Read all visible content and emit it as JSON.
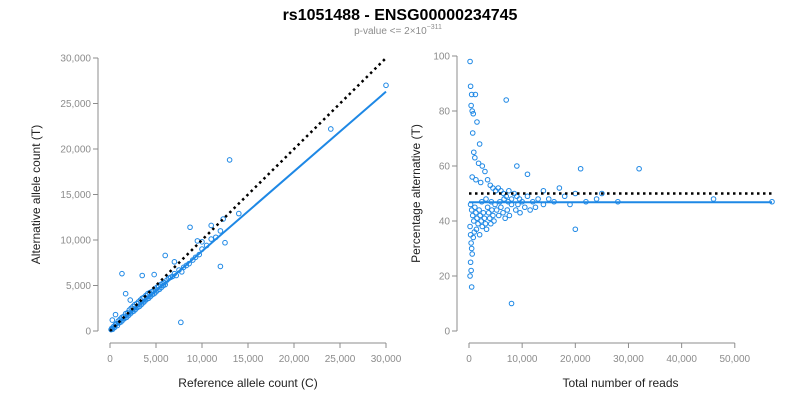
{
  "title": "rs1051488 - ENSG00000234745",
  "subtitle": {
    "prefix": "p-value <= 2",
    "times": "×",
    "base": "10",
    "exponent": "−311"
  },
  "colors": {
    "points": "#1e88e5",
    "fit": "#1e88e5",
    "reference": "#000000",
    "axis": "#8c8c8c"
  },
  "chart_data": [
    {
      "type": "scatter",
      "xlabel": "Reference allele count (C)",
      "ylabel": "Alternative allele count (T)",
      "xlim": [
        0,
        30000
      ],
      "ylim": [
        0,
        30000
      ],
      "xticks": [
        0,
        5000,
        10000,
        15000,
        20000,
        25000,
        30000
      ],
      "xtick_labels": [
        "0",
        "5,000",
        "10,000",
        "15,000",
        "20,000",
        "25,000",
        "30,000"
      ],
      "yticks": [
        0,
        5000,
        10000,
        15000,
        20000,
        25000,
        30000
      ],
      "ytick_labels": [
        "0",
        "5,000",
        "10,000",
        "15,000",
        "20,000",
        "25,000",
        "30,000"
      ],
      "grid": false,
      "reference_line": {
        "style": "dotted",
        "points": [
          [
            0,
            0
          ],
          [
            30000,
            30000
          ]
        ]
      },
      "fit_line": {
        "style": "solid",
        "points": [
          [
            0,
            0
          ],
          [
            30000,
            26300
          ]
        ]
      },
      "points": [
        [
          120,
          150
        ],
        [
          200,
          300
        ],
        [
          300,
          200
        ],
        [
          400,
          500
        ],
        [
          500,
          400
        ],
        [
          600,
          700
        ],
        [
          700,
          800
        ],
        [
          800,
          600
        ],
        [
          900,
          1100
        ],
        [
          1000,
          900
        ],
        [
          1100,
          1300
        ],
        [
          1200,
          1000
        ],
        [
          1300,
          1500
        ],
        [
          1400,
          1200
        ],
        [
          1500,
          1600
        ],
        [
          1600,
          1400
        ],
        [
          1700,
          1900
        ],
        [
          1800,
          1500
        ],
        [
          1900,
          2000
        ],
        [
          2000,
          1700
        ],
        [
          2100,
          2300
        ],
        [
          2200,
          1900
        ],
        [
          2300,
          2500
        ],
        [
          2400,
          2100
        ],
        [
          2500,
          2700
        ],
        [
          2600,
          2200
        ],
        [
          2700,
          2900
        ],
        [
          2800,
          2400
        ],
        [
          2900,
          3000
        ],
        [
          3000,
          2600
        ],
        [
          3100,
          3200
        ],
        [
          3200,
          2700
        ],
        [
          3300,
          3400
        ],
        [
          3400,
          2900
        ],
        [
          3500,
          3600
        ],
        [
          3600,
          3100
        ],
        [
          3700,
          3700
        ],
        [
          3800,
          3300
        ],
        [
          3900,
          3900
        ],
        [
          4000,
          3500
        ],
        [
          4100,
          4100
        ],
        [
          4200,
          3600
        ],
        [
          4300,
          4200
        ],
        [
          4400,
          3800
        ],
        [
          4500,
          4300
        ],
        [
          4600,
          4000
        ],
        [
          4700,
          4400
        ],
        [
          4800,
          4100
        ],
        [
          4900,
          4600
        ],
        [
          5000,
          4300
        ],
        [
          5100,
          4800
        ],
        [
          5200,
          4500
        ],
        [
          5300,
          4900
        ],
        [
          5400,
          4600
        ],
        [
          5500,
          5100
        ],
        [
          5600,
          4800
        ],
        [
          5700,
          5200
        ],
        [
          5800,
          5000
        ],
        [
          5900,
          5300
        ],
        [
          6000,
          5100
        ],
        [
          6200,
          5600
        ],
        [
          6400,
          5800
        ],
        [
          6600,
          5900
        ],
        [
          6800,
          6000
        ],
        [
          7000,
          6300
        ],
        [
          7200,
          6100
        ],
        [
          7500,
          6700
        ],
        [
          7800,
          6500
        ],
        [
          8000,
          7000
        ],
        [
          8300,
          7200
        ],
        [
          8600,
          7400
        ],
        [
          9000,
          7800
        ],
        [
          9300,
          8100
        ],
        [
          9700,
          8400
        ],
        [
          10000,
          9000
        ],
        [
          10500,
          9400
        ],
        [
          11000,
          10100
        ],
        [
          11500,
          10300
        ],
        [
          12000,
          11000
        ],
        [
          12300,
          12300
        ],
        [
          12500,
          9700
        ],
        [
          13000,
          18800
        ],
        [
          14000,
          12900
        ],
        [
          12000,
          7100
        ],
        [
          11000,
          11600
        ],
        [
          10000,
          9800
        ],
        [
          7700,
          950
        ],
        [
          1300,
          6300
        ],
        [
          1700,
          4100
        ],
        [
          3500,
          6100
        ],
        [
          6000,
          8300
        ],
        [
          7000,
          7600
        ],
        [
          8700,
          11400
        ],
        [
          9500,
          9900
        ],
        [
          24000,
          22200
        ],
        [
          30000,
          27000
        ],
        [
          250,
          1200
        ],
        [
          600,
          1800
        ],
        [
          2200,
          3400
        ],
        [
          4800,
          6200
        ]
      ]
    },
    {
      "type": "scatter",
      "xlabel": "Total number of reads",
      "ylabel": "Percentage alternative (T)",
      "xlim": [
        0,
        57000
      ],
      "ylim": [
        0,
        100
      ],
      "xticks": [
        0,
        10000,
        20000,
        30000,
        40000,
        50000
      ],
      "xtick_labels": [
        "0",
        "10,000",
        "20,000",
        "30,000",
        "40,000",
        "50,000"
      ],
      "yticks": [
        0,
        20,
        40,
        60,
        80,
        100
      ],
      "ytick_labels": [
        "0",
        "20",
        "40",
        "60",
        "80",
        "100"
      ],
      "grid": false,
      "reference_line": {
        "style": "dotted",
        "points": [
          [
            0,
            50
          ],
          [
            57000,
            50
          ]
        ]
      },
      "fit_line": {
        "style": "solid",
        "points": [
          [
            0,
            46.8
          ],
          [
            57000,
            46.8
          ]
        ]
      },
      "points": [
        [
          200,
          98
        ],
        [
          300,
          89
        ],
        [
          500,
          86
        ],
        [
          400,
          82
        ],
        [
          600,
          80
        ],
        [
          800,
          79
        ],
        [
          1200,
          86
        ],
        [
          700,
          72
        ],
        [
          1500,
          76
        ],
        [
          2000,
          68
        ],
        [
          900,
          65
        ],
        [
          1100,
          63
        ],
        [
          1800,
          61
        ],
        [
          2500,
          60
        ],
        [
          3000,
          58
        ],
        [
          600,
          56
        ],
        [
          1300,
          55
        ],
        [
          2200,
          54
        ],
        [
          3500,
          55
        ],
        [
          4000,
          53
        ],
        [
          4500,
          52
        ],
        [
          5000,
          51
        ],
        [
          5500,
          52
        ],
        [
          6000,
          51
        ],
        [
          6500,
          50
        ],
        [
          7000,
          49
        ],
        [
          7500,
          51
        ],
        [
          8000,
          48
        ],
        [
          8500,
          50
        ],
        [
          9000,
          49
        ],
        [
          9500,
          48
        ],
        [
          10000,
          47
        ],
        [
          11000,
          49
        ],
        [
          12000,
          47
        ],
        [
          13000,
          48
        ],
        [
          14000,
          46
        ],
        [
          15000,
          48
        ],
        [
          16000,
          47
        ],
        [
          18000,
          49
        ],
        [
          19000,
          46
        ],
        [
          20000,
          50
        ],
        [
          22000,
          47
        ],
        [
          24000,
          48
        ],
        [
          25000,
          50
        ],
        [
          300,
          46
        ],
        [
          500,
          44
        ],
        [
          700,
          42
        ],
        [
          900,
          40
        ],
        [
          1100,
          45
        ],
        [
          1300,
          43
        ],
        [
          1500,
          41
        ],
        [
          1700,
          39
        ],
        [
          1900,
          44
        ],
        [
          2100,
          42
        ],
        [
          2300,
          40
        ],
        [
          2500,
          38
        ],
        [
          2700,
          43
        ],
        [
          2900,
          41
        ],
        [
          3100,
          39
        ],
        [
          3300,
          37
        ],
        [
          3500,
          45
        ],
        [
          3700,
          43
        ],
        [
          3900,
          41
        ],
        [
          4100,
          39
        ],
        [
          4300,
          44
        ],
        [
          4500,
          42
        ],
        [
          4700,
          40
        ],
        [
          4900,
          46
        ],
        [
          5200,
          44
        ],
        [
          5600,
          42
        ],
        [
          6000,
          45
        ],
        [
          6400,
          43
        ],
        [
          6800,
          41
        ],
        [
          7200,
          44
        ],
        [
          7600,
          42
        ],
        [
          8000,
          46
        ],
        [
          8800,
          44
        ],
        [
          9600,
          43
        ],
        [
          10500,
          45
        ],
        [
          11500,
          44
        ],
        [
          12500,
          45
        ],
        [
          200,
          38
        ],
        [
          300,
          35
        ],
        [
          400,
          32
        ],
        [
          500,
          30
        ],
        [
          600,
          28
        ],
        [
          300,
          25
        ],
        [
          400,
          22
        ],
        [
          200,
          20
        ],
        [
          500,
          16
        ],
        [
          800,
          34
        ],
        [
          1000,
          36
        ],
        [
          1400,
          37
        ],
        [
          2000,
          35
        ],
        [
          8000,
          10
        ],
        [
          7000,
          84
        ],
        [
          9000,
          60
        ],
        [
          11000,
          57
        ],
        [
          20000,
          37
        ],
        [
          21000,
          59
        ],
        [
          28000,
          47
        ],
        [
          32000,
          59
        ],
        [
          46000,
          48
        ],
        [
          57000,
          47
        ],
        [
          14000,
          51
        ],
        [
          17000,
          52
        ],
        [
          2400,
          47
        ],
        [
          3200,
          48
        ],
        [
          4200,
          47
        ],
        [
          5800,
          47
        ],
        [
          6600,
          48
        ],
        [
          7400,
          47
        ],
        [
          9200,
          46
        ]
      ]
    }
  ]
}
